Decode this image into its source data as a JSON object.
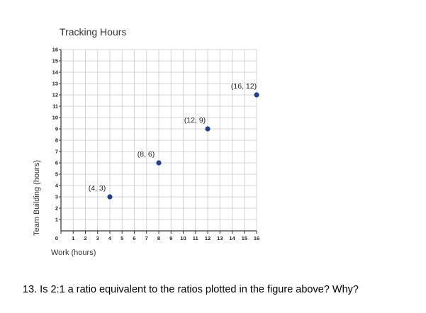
{
  "chart_data": {
    "type": "scatter",
    "title": "Tracking Hours",
    "xlabel": "Work (hours)",
    "ylabel": "Team Building (hours)",
    "xlim": [
      0,
      16
    ],
    "ylim": [
      0,
      16
    ],
    "x_ticks": [
      "0",
      "1",
      "2",
      "3",
      "4",
      "5",
      "6",
      "7",
      "8",
      "9",
      "10",
      "11",
      "12",
      "13",
      "14",
      "15",
      "16"
    ],
    "y_ticks": [
      "1",
      "2",
      "3",
      "4",
      "5",
      "6",
      "7",
      "8",
      "9",
      "10",
      "11",
      "12",
      "13",
      "14",
      "15",
      "16"
    ],
    "grid": true,
    "point_color": "#1f3f8f",
    "points": [
      {
        "x": 4,
        "y": 3,
        "label": "(4, 3)"
      },
      {
        "x": 8,
        "y": 6,
        "label": "(8, 6)"
      },
      {
        "x": 12,
        "y": 9,
        "label": "(12, 9)"
      },
      {
        "x": 16,
        "y": 12,
        "label": "(16, 12)"
      }
    ]
  },
  "question": {
    "text": "13. Is 2:1 a ratio equivalent to the ratios plotted in the figure above? Why?"
  }
}
